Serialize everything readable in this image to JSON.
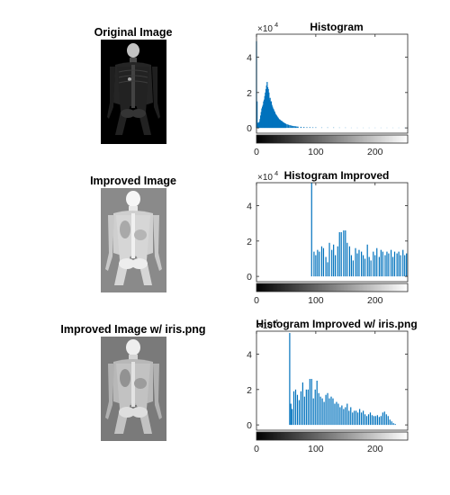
{
  "colors": {
    "bar": "#0072bd",
    "axis": "#262626",
    "image_bg_original": "#000000",
    "image_bg_improved": "#808080"
  },
  "panels": {
    "original_title": "Original Image",
    "improved_title": "Improved Image",
    "improved_iris_title": "Improved Image w/ iris.png"
  },
  "chart_data": [
    {
      "type": "bar",
      "title": "Histogram",
      "exponent_label": "×10",
      "exponent_power": "4",
      "xlim": [
        0,
        255
      ],
      "ylim": [
        -0.3,
        5.3
      ],
      "yticks": [
        "0",
        "2",
        "4"
      ],
      "xticks": [
        "0",
        "100",
        "200"
      ],
      "grayscale_colorbar": true,
      "x": [
        0,
        1,
        2,
        3,
        4,
        5,
        6,
        7,
        8,
        9,
        10,
        11,
        12,
        13,
        14,
        15,
        16,
        17,
        18,
        19,
        20,
        21,
        22,
        23,
        24,
        25,
        26,
        27,
        28,
        29,
        30,
        31,
        32,
        33,
        34,
        35,
        36,
        37,
        38,
        39,
        40,
        41,
        42,
        43,
        44,
        45,
        46,
        47,
        48,
        49,
        50,
        52,
        54,
        56,
        58,
        60,
        62,
        64,
        66,
        68,
        70,
        75,
        80,
        85,
        90,
        95,
        100,
        110,
        120,
        130,
        140,
        150,
        160,
        170,
        180,
        190,
        200,
        210,
        220,
        230,
        240,
        250,
        255
      ],
      "values": [
        4.9,
        1.5,
        0.3,
        0.25,
        0.3,
        0.35,
        0.5,
        0.7,
        0.9,
        1.1,
        1.2,
        1.3,
        1.5,
        1.6,
        1.8,
        2.0,
        2.2,
        2.4,
        2.6,
        2.3,
        2.2,
        2.0,
        1.6,
        1.7,
        1.5,
        1.5,
        1.3,
        1.2,
        1.1,
        1.05,
        0.95,
        0.9,
        0.8,
        0.75,
        0.7,
        0.65,
        0.6,
        0.55,
        0.5,
        0.48,
        0.45,
        0.42,
        0.4,
        0.38,
        0.35,
        0.32,
        0.3,
        0.28,
        0.26,
        0.24,
        0.22,
        0.2,
        0.18,
        0.16,
        0.14,
        0.12,
        0.11,
        0.1,
        0.09,
        0.08,
        0.07,
        0.06,
        0.05,
        0.04,
        0.04,
        0.03,
        0.03,
        0.02,
        0.02,
        0.02,
        0.015,
        0.015,
        0.01,
        0.01,
        0.01,
        0.01,
        0.01,
        0.01,
        0.01,
        0.01,
        0.01,
        0.01,
        0.01
      ]
    },
    {
      "type": "bar",
      "title": "Histogram Improved",
      "exponent_label": "×10",
      "exponent_power": "4",
      "xlim": [
        0,
        255
      ],
      "ylim": [
        -0.3,
        5.3
      ],
      "yticks": [
        "0",
        "2",
        "4"
      ],
      "xticks": [
        "0",
        "100",
        "200"
      ],
      "grayscale_colorbar": true,
      "x": [
        93,
        97,
        100,
        103,
        106,
        110,
        113,
        117,
        120,
        123,
        127,
        130,
        133,
        137,
        140,
        143,
        147,
        150,
        153,
        157,
        160,
        163,
        167,
        170,
        173,
        177,
        180,
        183,
        187,
        190,
        193,
        197,
        200,
        203,
        207,
        210,
        213,
        217,
        220,
        223,
        227,
        230,
        233,
        237,
        240,
        243,
        247,
        250,
        253
      ],
      "values": [
        5.3,
        1.4,
        1.2,
        1.5,
        1.4,
        1.7,
        1.6,
        1.1,
        0.8,
        1.9,
        1.5,
        1.8,
        1.2,
        1.7,
        2.5,
        2.5,
        2.6,
        2.6,
        1.9,
        1.7,
        1.2,
        0.9,
        1.6,
        1.3,
        1.5,
        1.4,
        1.2,
        1.0,
        1.8,
        1.1,
        0.9,
        1.4,
        1.2,
        1.6,
        1.1,
        1.5,
        1.4,
        1.2,
        1.4,
        1.3,
        1.5,
        1.1,
        1.4,
        1.3,
        1.4,
        1.2,
        1.5,
        1.2,
        1.3
      ]
    },
    {
      "type": "bar",
      "title": "Histogram Improved w/ iris.png",
      "exponent_label": "×10",
      "exponent_power": "4",
      "xlim": [
        0,
        255
      ],
      "ylim": [
        -0.3,
        5.3
      ],
      "yticks": [
        "0",
        "2",
        "4"
      ],
      "xticks": [
        "0",
        "100",
        "200"
      ],
      "grayscale_colorbar": true,
      "x": [
        56,
        58,
        60,
        63,
        66,
        69,
        72,
        75,
        78,
        81,
        84,
        87,
        90,
        93,
        96,
        99,
        102,
        105,
        108,
        111,
        114,
        117,
        120,
        123,
        126,
        129,
        132,
        135,
        138,
        141,
        144,
        147,
        150,
        153,
        156,
        159,
        162,
        165,
        168,
        171,
        174,
        177,
        180,
        183,
        186,
        189,
        192,
        195,
        198,
        201,
        204,
        207,
        210,
        213,
        216,
        219,
        222,
        225,
        228,
        231,
        234
      ],
      "values": [
        5.2,
        1.2,
        0.9,
        1.9,
        2.0,
        1.7,
        1.4,
        1.9,
        2.4,
        1.6,
        2.0,
        2.0,
        2.6,
        2.6,
        1.5,
        2.0,
        2.5,
        1.8,
        1.6,
        1.5,
        1.3,
        1.7,
        1.8,
        1.5,
        1.6,
        1.5,
        1.2,
        1.3,
        1.2,
        1.0,
        1.1,
        0.9,
        1.0,
        1.2,
        0.8,
        1.0,
        0.7,
        0.8,
        0.8,
        0.7,
        0.9,
        0.7,
        0.8,
        0.6,
        0.5,
        0.6,
        0.7,
        0.55,
        0.5,
        0.5,
        0.55,
        0.45,
        0.5,
        0.7,
        0.75,
        0.6,
        0.5,
        0.3,
        0.2,
        0.1,
        0.05
      ]
    }
  ]
}
